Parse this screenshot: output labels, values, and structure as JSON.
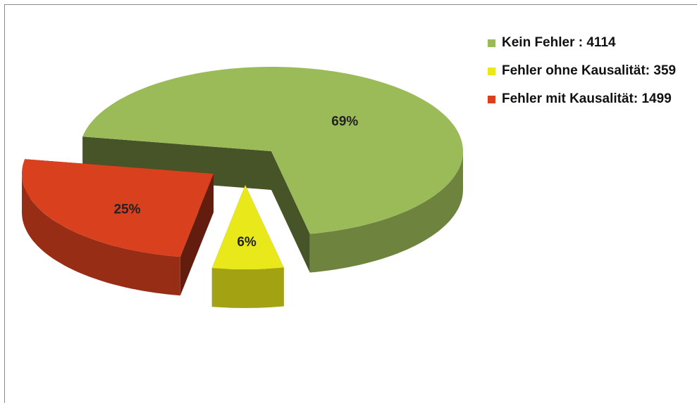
{
  "chart_data": {
    "type": "pie",
    "categories": [
      "Kein Fehler : 4114",
      "Fehler ohne Kausalität: 359",
      "Fehler mit Kausalität: 1499"
    ],
    "values": [
      69,
      6,
      25
    ],
    "value_labels": [
      "69%",
      "6%",
      "25%"
    ],
    "colors": [
      "#9bbb59",
      "#e8e81a",
      "#d9401e"
    ],
    "legend": "right"
  }
}
